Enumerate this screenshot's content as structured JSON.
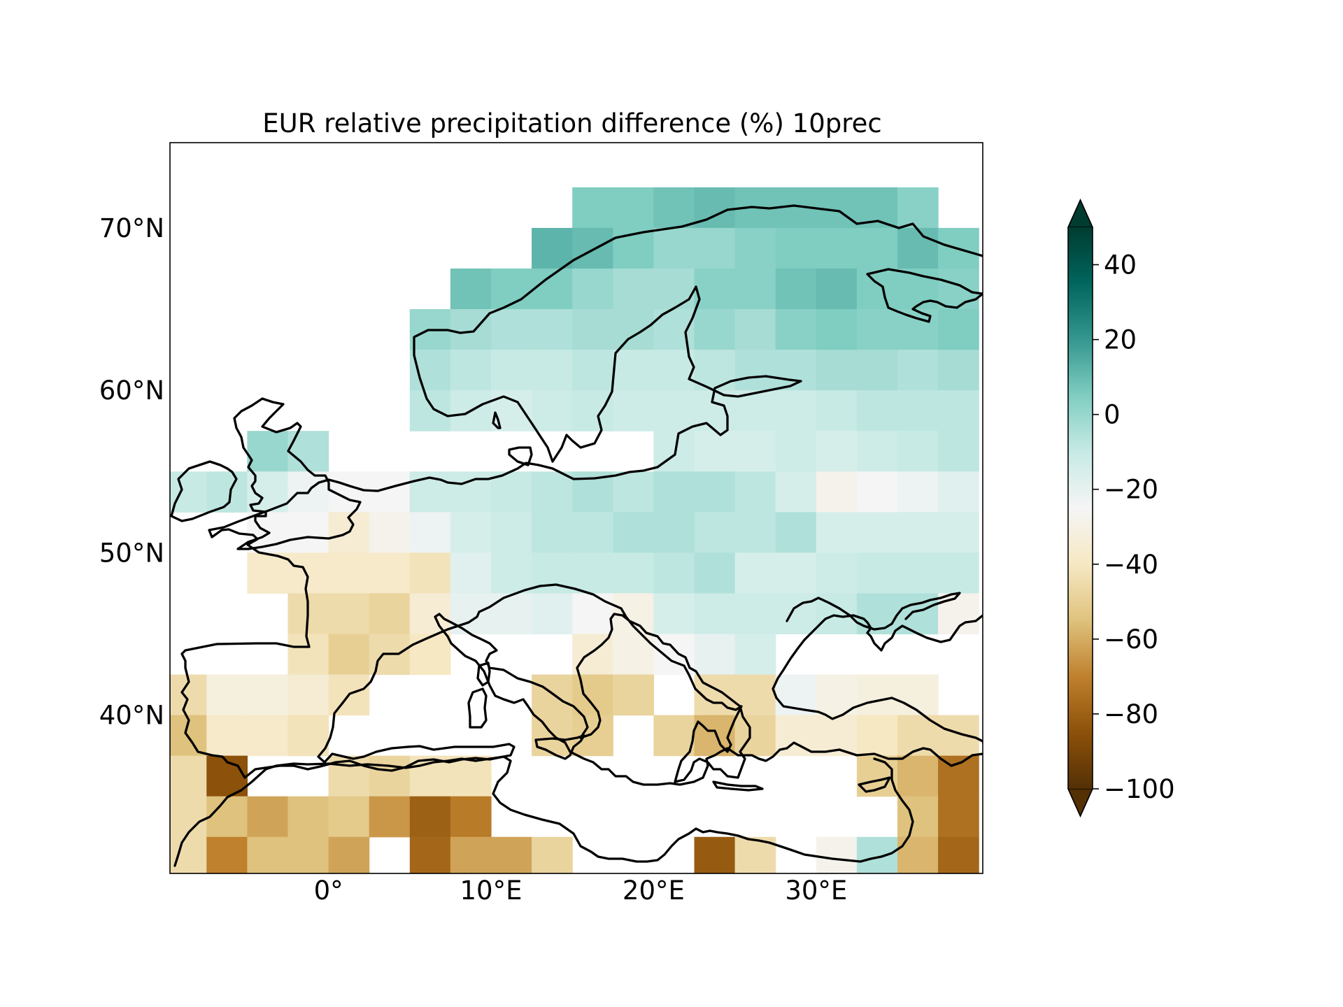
{
  "figure": {
    "title": "EUR relative precipitation difference (%) 10prec",
    "background": "#ffffff"
  },
  "map": {
    "projection": "PlateCarree",
    "extent": {
      "lon": [
        -9.75,
        40.25
      ],
      "lat": [
        30.25,
        75.25
      ]
    },
    "grid_resolution_deg": 2.5,
    "coastline_color": "#000000",
    "lon_ticks": [
      {
        "value": 0,
        "label": "0°"
      },
      {
        "value": 10,
        "label": "10°E"
      },
      {
        "value": 20,
        "label": "20°E"
      },
      {
        "value": 30,
        "label": "30°E"
      }
    ],
    "lat_ticks": [
      {
        "value": 40,
        "label": "40°N"
      },
      {
        "value": 50,
        "label": "50°N"
      },
      {
        "value": 60,
        "label": "60°N"
      },
      {
        "value": 70,
        "label": "70°N"
      }
    ]
  },
  "chart_data": {
    "type": "heatmap",
    "title": "EUR relative precipitation difference (%) 10prec",
    "variable": "relative precipitation difference (%)",
    "cell_size_deg": 2.5,
    "value_range": [
      -100,
      50
    ],
    "note_missing": "cells not listed are drawn white (no data / sea)",
    "rows": [
      {
        "lat": 71.25,
        "cells": [
          [
            16.25,
            5
          ],
          [
            18.75,
            5
          ],
          [
            21.25,
            8
          ],
          [
            23.75,
            10
          ],
          [
            26.25,
            8
          ],
          [
            28.75,
            8
          ],
          [
            31.25,
            8
          ],
          [
            33.75,
            8
          ],
          [
            36.25,
            3
          ]
        ]
      },
      {
        "lat": 68.75,
        "cells": [
          [
            13.75,
            12
          ],
          [
            16.25,
            10
          ],
          [
            18.75,
            5
          ],
          [
            21.25,
            0
          ],
          [
            23.75,
            0
          ],
          [
            26.25,
            3
          ],
          [
            28.75,
            5
          ],
          [
            31.25,
            5
          ],
          [
            33.75,
            5
          ],
          [
            36.25,
            10
          ],
          [
            38.75,
            5
          ]
        ]
      },
      {
        "lat": 66.25,
        "cells": [
          [
            8.75,
            8
          ],
          [
            11.25,
            5
          ],
          [
            13.75,
            5
          ],
          [
            16.25,
            0
          ],
          [
            18.75,
            -3
          ],
          [
            21.25,
            -3
          ],
          [
            23.75,
            3
          ],
          [
            26.25,
            3
          ],
          [
            28.75,
            8
          ],
          [
            31.25,
            10
          ],
          [
            33.75,
            5
          ],
          [
            36.25,
            5
          ],
          [
            38.75,
            3
          ]
        ]
      },
      {
        "lat": 63.75,
        "cells": [
          [
            6.25,
            0
          ],
          [
            8.75,
            -3
          ],
          [
            11.25,
            -5
          ],
          [
            13.75,
            -5
          ],
          [
            16.25,
            -3
          ],
          [
            18.75,
            -3
          ],
          [
            21.25,
            -5
          ],
          [
            23.75,
            0
          ],
          [
            26.25,
            -3
          ],
          [
            28.75,
            3
          ],
          [
            31.25,
            5
          ],
          [
            33.75,
            3
          ],
          [
            36.25,
            3
          ],
          [
            38.75,
            5
          ]
        ]
      },
      {
        "lat": 61.25,
        "cells": [
          [
            6.25,
            -5
          ],
          [
            8.75,
            -8
          ],
          [
            11.25,
            -10
          ],
          [
            13.75,
            -10
          ],
          [
            16.25,
            -8
          ],
          [
            18.75,
            -10
          ],
          [
            21.25,
            -10
          ],
          [
            23.75,
            -8
          ],
          [
            26.25,
            -5
          ],
          [
            28.75,
            -5
          ],
          [
            31.25,
            -3
          ],
          [
            33.75,
            -3
          ],
          [
            36.25,
            -5
          ],
          [
            38.75,
            -3
          ]
        ]
      },
      {
        "lat": 58.75,
        "cells": [
          [
            6.25,
            -8
          ],
          [
            8.75,
            -12
          ],
          [
            11.25,
            -15
          ],
          [
            13.75,
            -12
          ],
          [
            16.25,
            -10
          ],
          [
            18.75,
            -12
          ],
          [
            21.25,
            -12
          ],
          [
            23.75,
            -12
          ],
          [
            26.25,
            -12
          ],
          [
            28.75,
            -12
          ],
          [
            31.25,
            -10
          ],
          [
            33.75,
            -8
          ],
          [
            36.25,
            -8
          ],
          [
            38.75,
            -8
          ]
        ]
      },
      {
        "lat": 56.25,
        "cells": [
          [
            -3.75,
            0
          ],
          [
            -1.25,
            -5
          ],
          [
            21.25,
            -12
          ],
          [
            23.75,
            -15
          ],
          [
            26.25,
            -15
          ],
          [
            28.75,
            -12
          ],
          [
            31.25,
            -15
          ],
          [
            33.75,
            -12
          ],
          [
            36.25,
            -10
          ],
          [
            38.75,
            -8
          ]
        ]
      },
      {
        "lat": 53.75,
        "cells": [
          [
            -8.75,
            -10
          ],
          [
            -6.25,
            -8
          ],
          [
            -3.75,
            -15
          ],
          [
            -1.25,
            -22
          ],
          [
            1.25,
            -25
          ],
          [
            3.75,
            -25
          ],
          [
            6.25,
            -12
          ],
          [
            8.75,
            -12
          ],
          [
            11.25,
            -10
          ],
          [
            13.75,
            -8
          ],
          [
            16.25,
            -5
          ],
          [
            18.75,
            -8
          ],
          [
            21.25,
            -5
          ],
          [
            23.75,
            -5
          ],
          [
            26.25,
            -8
          ],
          [
            28.75,
            -15
          ],
          [
            31.25,
            -28
          ],
          [
            33.75,
            -25
          ],
          [
            36.25,
            -22
          ],
          [
            38.75,
            -18
          ]
        ]
      },
      {
        "lat": 51.25,
        "cells": [
          [
            -3.75,
            -25
          ],
          [
            -1.25,
            -25
          ],
          [
            1.25,
            -35
          ],
          [
            3.75,
            -28
          ],
          [
            6.25,
            -22
          ],
          [
            8.75,
            -15
          ],
          [
            11.25,
            -12
          ],
          [
            13.75,
            -8
          ],
          [
            16.25,
            -8
          ],
          [
            18.75,
            -5
          ],
          [
            21.25,
            -5
          ],
          [
            23.75,
            -8
          ],
          [
            26.25,
            -8
          ],
          [
            28.75,
            -5
          ],
          [
            31.25,
            -15
          ],
          [
            33.75,
            -15
          ],
          [
            36.25,
            -15
          ],
          [
            38.75,
            -15
          ]
        ]
      },
      {
        "lat": 48.75,
        "cells": [
          [
            -3.75,
            -38
          ],
          [
            -1.25,
            -38
          ],
          [
            1.25,
            -38
          ],
          [
            3.75,
            -38
          ],
          [
            6.25,
            -42
          ],
          [
            8.75,
            -18
          ],
          [
            11.25,
            -12
          ],
          [
            13.75,
            -10
          ],
          [
            16.25,
            -10
          ],
          [
            18.75,
            -10
          ],
          [
            21.25,
            -8
          ],
          [
            23.75,
            -5
          ],
          [
            26.25,
            -15
          ],
          [
            28.75,
            -15
          ],
          [
            31.25,
            -12
          ],
          [
            33.75,
            -10
          ],
          [
            36.25,
            -10
          ],
          [
            38.75,
            -10
          ]
        ]
      },
      {
        "lat": 46.25,
        "cells": [
          [
            -1.25,
            -45
          ],
          [
            1.25,
            -45
          ],
          [
            3.75,
            -48
          ],
          [
            6.25,
            -35
          ],
          [
            8.75,
            -20
          ],
          [
            11.25,
            -20
          ],
          [
            13.75,
            -18
          ],
          [
            16.25,
            -25
          ],
          [
            18.75,
            -30
          ],
          [
            21.25,
            -15
          ],
          [
            23.75,
            -12
          ],
          [
            26.25,
            -12
          ],
          [
            28.75,
            -12
          ],
          [
            31.25,
            -10
          ],
          [
            33.75,
            -5
          ],
          [
            36.25,
            -5
          ],
          [
            38.75,
            -28
          ]
        ]
      },
      {
        "lat": 43.75,
        "cells": [
          [
            -1.25,
            -42
          ],
          [
            1.25,
            -50
          ],
          [
            3.75,
            -45
          ],
          [
            6.25,
            -40
          ],
          [
            16.25,
            -35
          ],
          [
            18.75,
            -30
          ],
          [
            21.25,
            -25
          ],
          [
            23.75,
            -20
          ],
          [
            26.25,
            -15
          ]
        ]
      },
      {
        "lat": 41.25,
        "cells": [
          [
            -8.75,
            -45
          ],
          [
            -6.25,
            -32
          ],
          [
            -3.75,
            -32
          ],
          [
            -1.25,
            -35
          ],
          [
            1.25,
            -42
          ],
          [
            13.75,
            -48
          ],
          [
            16.25,
            -52
          ],
          [
            18.75,
            -48
          ],
          [
            23.75,
            -45
          ],
          [
            26.25,
            -45
          ],
          [
            28.75,
            -22
          ],
          [
            31.25,
            -30
          ],
          [
            33.75,
            -32
          ],
          [
            36.25,
            -32
          ]
        ]
      },
      {
        "lat": 38.75,
        "cells": [
          [
            -8.75,
            -55
          ],
          [
            -6.25,
            -38
          ],
          [
            -3.75,
            -38
          ],
          [
            -1.25,
            -42
          ],
          [
            13.75,
            -48
          ],
          [
            16.25,
            -50
          ],
          [
            21.25,
            -48
          ],
          [
            23.75,
            -58
          ],
          [
            26.25,
            -48
          ],
          [
            28.75,
            -35
          ],
          [
            31.25,
            -35
          ],
          [
            33.75,
            -40
          ],
          [
            36.25,
            -45
          ],
          [
            38.75,
            -45
          ]
        ]
      },
      {
        "lat": 36.25,
        "cells": [
          [
            -8.75,
            -45
          ],
          [
            -6.25,
            -85
          ],
          [
            1.25,
            -45
          ],
          [
            3.75,
            -48
          ],
          [
            6.25,
            -42
          ],
          [
            8.75,
            -42
          ],
          [
            33.75,
            -50
          ],
          [
            36.25,
            -58
          ],
          [
            38.75,
            -75
          ]
        ]
      },
      {
        "lat": 33.75,
        "cells": [
          [
            -8.75,
            -45
          ],
          [
            -6.25,
            -55
          ],
          [
            -3.75,
            -62
          ],
          [
            -1.25,
            -55
          ],
          [
            1.25,
            -52
          ],
          [
            3.75,
            -65
          ],
          [
            6.25,
            -80
          ],
          [
            8.75,
            -72
          ],
          [
            36.25,
            -55
          ],
          [
            38.75,
            -75
          ]
        ]
      },
      {
        "lat": 31.25,
        "cells": [
          [
            -8.75,
            -45
          ],
          [
            -6.25,
            -70
          ],
          [
            -3.75,
            -55
          ],
          [
            -1.25,
            -55
          ],
          [
            1.25,
            -62
          ],
          [
            6.25,
            -78
          ],
          [
            8.75,
            -62
          ],
          [
            11.25,
            -62
          ],
          [
            13.75,
            -48
          ],
          [
            23.75,
            -82
          ],
          [
            26.25,
            -45
          ],
          [
            31.25,
            -28
          ],
          [
            33.75,
            -5
          ],
          [
            36.25,
            -58
          ],
          [
            38.75,
            -78
          ]
        ]
      }
    ]
  },
  "colorbar": {
    "cmap": "BrBG",
    "min": -100,
    "max": 50,
    "extend": "both",
    "ticks": [
      {
        "value": 40,
        "label": "40"
      },
      {
        "value": 20,
        "label": "20"
      },
      {
        "value": 0,
        "label": "0"
      },
      {
        "value": -20,
        "label": "−20"
      },
      {
        "value": -40,
        "label": "−40"
      },
      {
        "value": -60,
        "label": "−60"
      },
      {
        "value": -80,
        "label": "−80"
      },
      {
        "value": -100,
        "label": "−100"
      }
    ],
    "stops": [
      "#543005",
      "#8c510a",
      "#bf812d",
      "#dfc27d",
      "#f6e8c3",
      "#f5f5f5",
      "#c7eae5",
      "#80cdc1",
      "#35978f",
      "#01665e",
      "#003c30"
    ],
    "under_color": "#543005",
    "over_color": "#003c30"
  }
}
